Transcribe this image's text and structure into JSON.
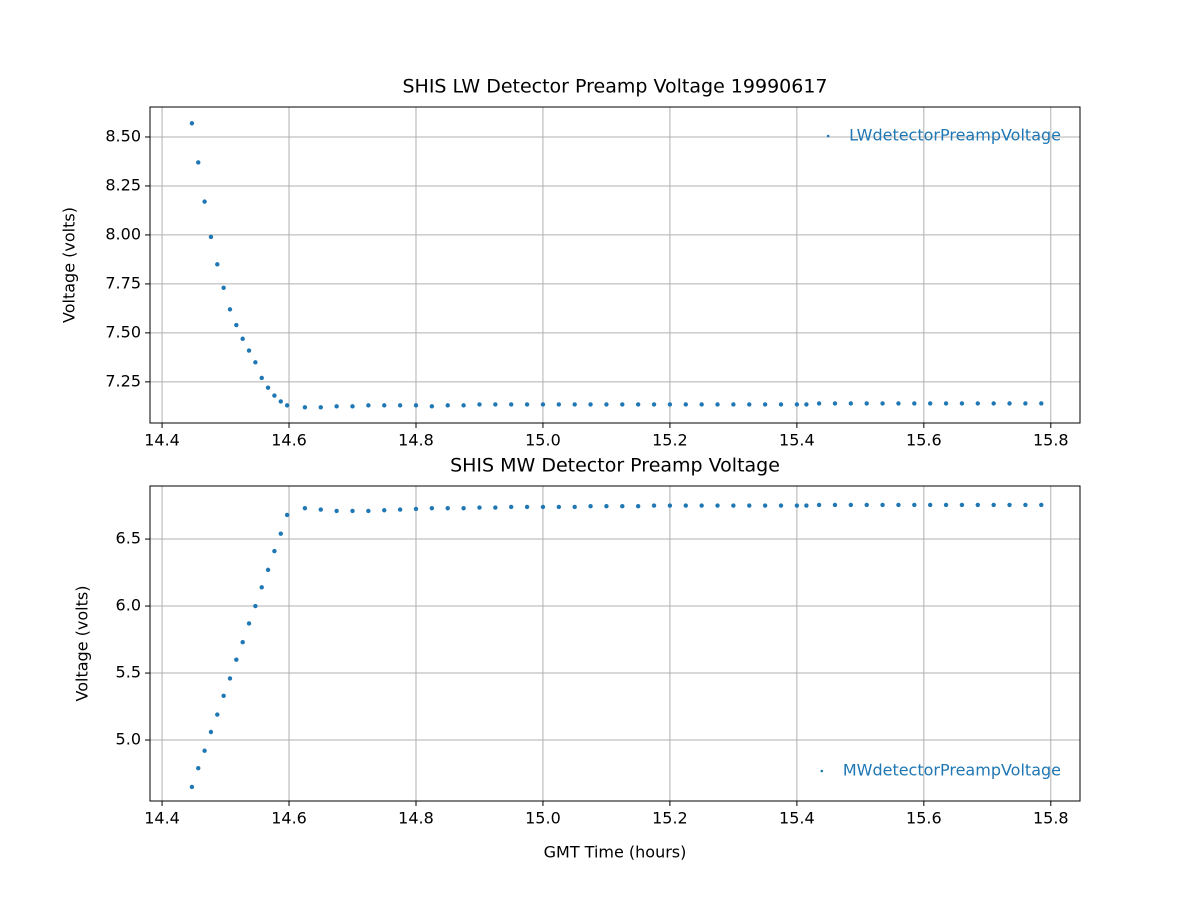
{
  "chart_data": [
    {
      "type": "scatter",
      "title": "SHIS LW Detector Preamp Voltage 19990617",
      "ylabel": "Voltage (volts)",
      "x": [
        14.447,
        14.457,
        14.467,
        14.477,
        14.487,
        14.497,
        14.507,
        14.517,
        14.527,
        14.537,
        14.547,
        14.557,
        14.567,
        14.577,
        14.587,
        14.597,
        14.625,
        14.65,
        14.675,
        14.7,
        14.725,
        14.75,
        14.775,
        14.8,
        14.825,
        14.85,
        14.875,
        14.9,
        14.925,
        14.95,
        14.975,
        15.0,
        15.025,
        15.05,
        15.075,
        15.1,
        15.125,
        15.15,
        15.175,
        15.2,
        15.225,
        15.25,
        15.275,
        15.3,
        15.325,
        15.35,
        15.375,
        15.4,
        15.415,
        15.435,
        15.46,
        15.485,
        15.51,
        15.535,
        15.56,
        15.585,
        15.61,
        15.635,
        15.66,
        15.685,
        15.71,
        15.735,
        15.76,
        15.785
      ],
      "series": [
        {
          "name": "LWdetectorPreampVoltage",
          "color": "#1f77b4",
          "values": [
            8.57,
            8.37,
            8.17,
            7.99,
            7.85,
            7.73,
            7.62,
            7.54,
            7.47,
            7.41,
            7.35,
            7.27,
            7.22,
            7.18,
            7.15,
            7.13,
            7.12,
            7.12,
            7.125,
            7.125,
            7.13,
            7.13,
            7.13,
            7.13,
            7.125,
            7.13,
            7.13,
            7.135,
            7.135,
            7.135,
            7.135,
            7.135,
            7.135,
            7.135,
            7.135,
            7.135,
            7.135,
            7.135,
            7.135,
            7.135,
            7.135,
            7.135,
            7.135,
            7.135,
            7.135,
            7.135,
            7.135,
            7.135,
            7.135,
            7.14,
            7.14,
            7.14,
            7.14,
            7.14,
            7.14,
            7.14,
            7.14,
            7.14,
            7.14,
            7.14,
            7.14,
            7.14,
            7.14,
            7.14
          ]
        }
      ],
      "xlim": [
        14.381,
        15.846
      ],
      "ylim": [
        7.04,
        8.653
      ],
      "xticks": [
        14.4,
        14.6,
        14.8,
        {
          "value": 15,
          "label": "15.0"
        },
        15.2,
        15.4,
        15.6,
        15.8
      ],
      "yticks": [
        7.25,
        {
          "value": 7.5,
          "label": "7.50"
        },
        7.75,
        {
          "value": 8,
          "label": "8.00"
        },
        8.25,
        {
          "value": 8.5,
          "label": "8.50"
        }
      ],
      "grid": true,
      "legend": "upper right"
    },
    {
      "type": "scatter",
      "title": "SHIS MW Detector Preamp Voltage",
      "xlabel": "GMT Time (hours)",
      "ylabel": "Voltage (volts)",
      "x": [
        14.447,
        14.457,
        14.467,
        14.477,
        14.487,
        14.497,
        14.507,
        14.517,
        14.527,
        14.537,
        14.547,
        14.557,
        14.567,
        14.577,
        14.587,
        14.597,
        14.625,
        14.65,
        14.675,
        14.7,
        14.725,
        14.75,
        14.775,
        14.8,
        14.825,
        14.85,
        14.875,
        14.9,
        14.925,
        14.95,
        14.975,
        15.0,
        15.025,
        15.05,
        15.075,
        15.1,
        15.125,
        15.15,
        15.175,
        15.2,
        15.225,
        15.25,
        15.275,
        15.3,
        15.325,
        15.35,
        15.375,
        15.4,
        15.415,
        15.435,
        15.46,
        15.485,
        15.51,
        15.535,
        15.56,
        15.585,
        15.61,
        15.635,
        15.66,
        15.685,
        15.71,
        15.735,
        15.76,
        15.785
      ],
      "series": [
        {
          "name": "MWdetectorPreampVoltage",
          "color": "#1f77b4",
          "values": [
            4.65,
            4.79,
            4.92,
            5.06,
            5.19,
            5.33,
            5.46,
            5.6,
            5.73,
            5.87,
            6.0,
            6.14,
            6.27,
            6.41,
            6.54,
            6.68,
            6.73,
            6.72,
            6.71,
            6.71,
            6.71,
            6.715,
            6.72,
            6.725,
            6.73,
            6.73,
            6.73,
            6.735,
            6.735,
            6.74,
            6.74,
            6.74,
            6.74,
            6.74,
            6.745,
            6.745,
            6.745,
            6.745,
            6.75,
            6.75,
            6.75,
            6.75,
            6.75,
            6.75,
            6.75,
            6.75,
            6.75,
            6.75,
            6.75,
            6.755,
            6.755,
            6.755,
            6.755,
            6.755,
            6.755,
            6.755,
            6.755,
            6.755,
            6.755,
            6.755,
            6.755,
            6.755,
            6.755,
            6.755
          ]
        }
      ],
      "xlim": [
        14.381,
        15.846
      ],
      "ylim": [
        4.545,
        6.896
      ],
      "xticks": [
        14.4,
        14.6,
        14.8,
        {
          "value": 15,
          "label": "15.0"
        },
        15.2,
        15.4,
        15.6,
        15.8
      ],
      "yticks": [
        {
          "value": 5,
          "label": "5.0"
        },
        5.5,
        {
          "value": 6,
          "label": "6.0"
        },
        6.5
      ],
      "grid": true,
      "legend": "lower right"
    }
  ]
}
